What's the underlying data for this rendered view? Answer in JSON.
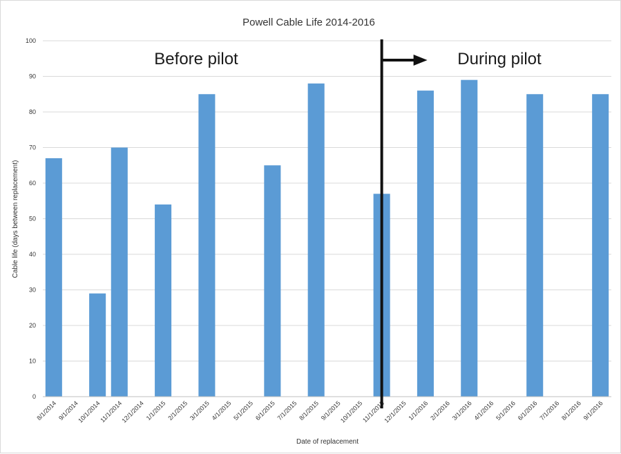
{
  "chart_data": {
    "type": "bar",
    "title": "Powell Cable Life 2014-2016",
    "xlabel": "Date of replacement",
    "ylabel": "Cable life (days between replacement)",
    "ylim": [
      0,
      100
    ],
    "yticks": [
      0,
      10,
      20,
      30,
      40,
      50,
      60,
      70,
      80,
      90,
      100
    ],
    "grid": true,
    "categories": [
      "8/1/2014",
      "9/1/2014",
      "10/1/2014",
      "11/1/2014",
      "12/1/2014",
      "1/1/2015",
      "2/1/2015",
      "3/1/2015",
      "4/1/2015",
      "5/1/2015",
      "6/1/2015",
      "7/1/2015",
      "8/1/2015",
      "9/1/2015",
      "10/1/2015",
      "11/1/2015",
      "12/1/2015",
      "1/1/2016",
      "2/1/2016",
      "3/1/2016",
      "4/1/2016",
      "5/1/2016",
      "6/1/2016",
      "7/1/2016",
      "8/1/2016",
      "9/1/2016"
    ],
    "values": [
      67,
      null,
      29,
      70,
      null,
      54,
      null,
      85,
      null,
      null,
      65,
      null,
      88,
      null,
      null,
      57,
      null,
      86,
      null,
      89,
      null,
      null,
      85,
      null,
      null,
      85
    ],
    "bar_color": "#5b9bd5",
    "annotations": {
      "before": "Before pilot",
      "during": "During pilot",
      "divider_at": "11/1/2015"
    }
  }
}
